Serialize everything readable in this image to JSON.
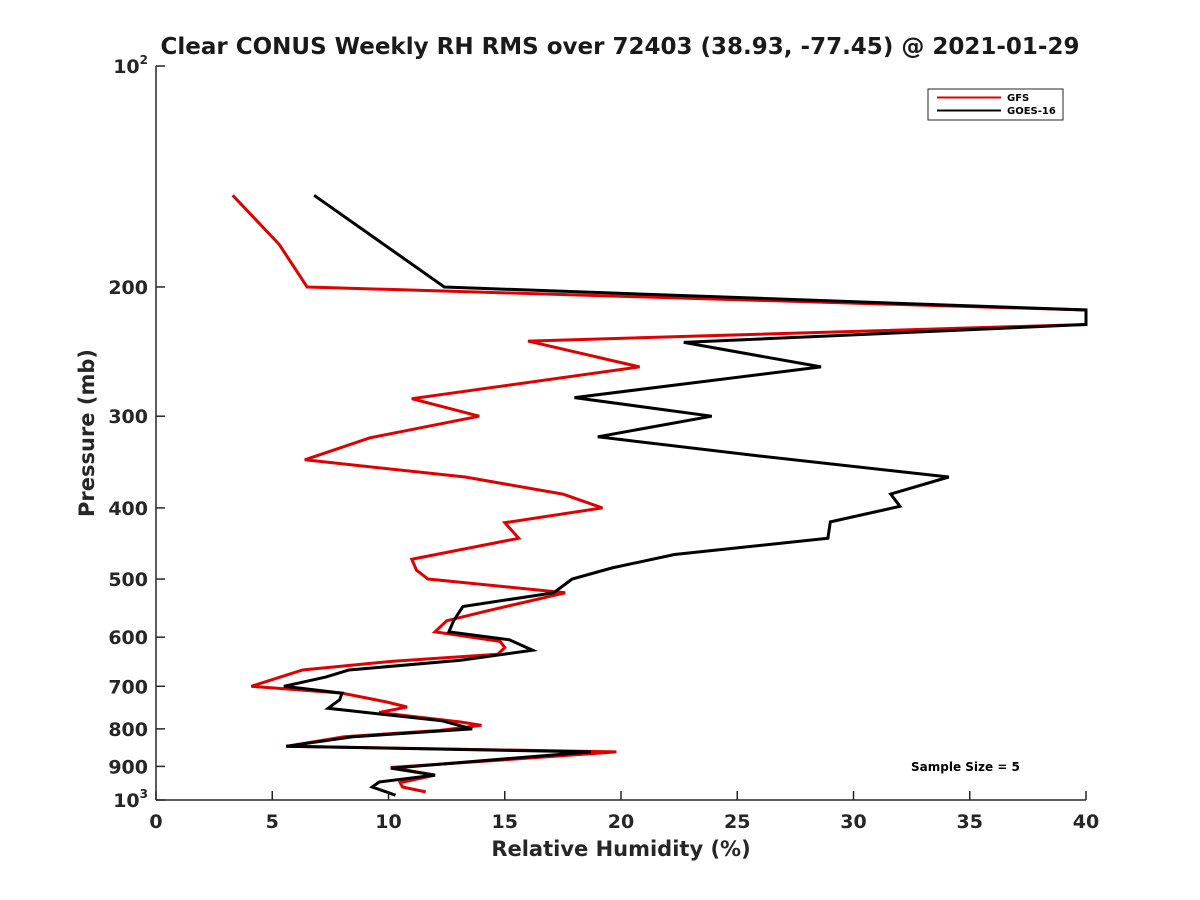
{
  "chart_data": {
    "type": "line",
    "title": "Clear CONUS Weekly RH RMS over 72403 (38.93, -77.45) @ 2021-01-29",
    "xlabel": "Relative Humidity (%)",
    "ylabel": "Pressure (mb)",
    "xlim": [
      0,
      40
    ],
    "ylim": [
      100,
      1000
    ],
    "y_scale": "log",
    "y_reversed": true,
    "grid": false,
    "legend_position": "top-right",
    "x_ticks": [
      "0",
      "5",
      "10",
      "15",
      "20",
      "25",
      "30",
      "35",
      "40"
    ],
    "y_ticks": [
      {
        "value": 100,
        "base": "10",
        "exp": "2"
      },
      {
        "value": 200,
        "base": "200",
        "exp": ""
      },
      {
        "value": 300,
        "base": "300",
        "exp": ""
      },
      {
        "value": 400,
        "base": "400",
        "exp": ""
      },
      {
        "value": 500,
        "base": "500",
        "exp": ""
      },
      {
        "value": 600,
        "base": "600",
        "exp": ""
      },
      {
        "value": 700,
        "base": "700",
        "exp": ""
      },
      {
        "value": 800,
        "base": "800",
        "exp": ""
      },
      {
        "value": 900,
        "base": "900",
        "exp": ""
      },
      {
        "value": 1000,
        "base": "10",
        "exp": "3"
      }
    ],
    "series": [
      {
        "name": "GFS",
        "color": "#e00000",
        "points": [
          [
            3.3,
            150
          ],
          [
            5.3,
            175
          ],
          [
            6.5,
            200
          ],
          [
            40.0,
            215
          ],
          [
            40.0,
            225
          ],
          [
            16.0,
            237
          ],
          [
            20.8,
            257
          ],
          [
            11.0,
            284
          ],
          [
            13.9,
            300
          ],
          [
            9.2,
            321
          ],
          [
            6.4,
            344
          ],
          [
            13.3,
            363
          ],
          [
            17.5,
            383
          ],
          [
            19.2,
            400
          ],
          [
            15.0,
            419
          ],
          [
            15.6,
            440
          ],
          [
            11.0,
            470
          ],
          [
            11.2,
            486
          ],
          [
            11.7,
            500
          ],
          [
            17.6,
            522
          ],
          [
            14.1,
            554
          ],
          [
            12.5,
            570
          ],
          [
            12.0,
            590
          ],
          [
            14.8,
            608
          ],
          [
            15.0,
            620
          ],
          [
            14.7,
            633
          ],
          [
            10.2,
            647
          ],
          [
            6.3,
            665
          ],
          [
            4.1,
            700
          ],
          [
            8.0,
            715
          ],
          [
            9.9,
            735
          ],
          [
            10.8,
            747
          ],
          [
            9.6,
            760
          ],
          [
            13.1,
            783
          ],
          [
            14.0,
            791
          ],
          [
            12.2,
            804
          ],
          [
            8.1,
            820
          ],
          [
            5.6,
            845
          ],
          [
            19.8,
            860
          ],
          [
            15.3,
            880
          ],
          [
            10.1,
            903
          ],
          [
            12.0,
            925
          ],
          [
            10.5,
            947
          ],
          [
            10.6,
            960
          ],
          [
            11.6,
            975
          ]
        ]
      },
      {
        "name": "GOES-16",
        "color": "#000000",
        "points": [
          [
            6.8,
            150
          ],
          [
            12.4,
            200
          ],
          [
            40.0,
            215
          ],
          [
            40.0,
            225
          ],
          [
            22.7,
            238
          ],
          [
            28.6,
            257
          ],
          [
            18.0,
            283
          ],
          [
            23.9,
            300
          ],
          [
            19.0,
            320
          ],
          [
            26.0,
            340
          ],
          [
            34.1,
            363
          ],
          [
            31.6,
            383
          ],
          [
            32.0,
            398
          ],
          [
            29.0,
            418
          ],
          [
            28.9,
            440
          ],
          [
            22.3,
            463
          ],
          [
            19.6,
            483
          ],
          [
            17.9,
            500
          ],
          [
            17.1,
            522
          ],
          [
            13.2,
            545
          ],
          [
            12.8,
            570
          ],
          [
            12.6,
            590
          ],
          [
            15.2,
            605
          ],
          [
            16.2,
            625
          ],
          [
            13.1,
            645
          ],
          [
            8.3,
            665
          ],
          [
            7.3,
            680
          ],
          [
            5.5,
            700
          ],
          [
            8.0,
            715
          ],
          [
            7.9,
            730
          ],
          [
            7.4,
            750
          ],
          [
            12.3,
            780
          ],
          [
            13.6,
            800
          ],
          [
            8.5,
            820
          ],
          [
            5.6,
            845
          ],
          [
            18.7,
            860
          ],
          [
            10.1,
            905
          ],
          [
            12.0,
            925
          ],
          [
            9.6,
            945
          ],
          [
            9.3,
            960
          ],
          [
            10.3,
            985
          ]
        ]
      }
    ],
    "annotations": [
      "Sample Size = 5"
    ]
  }
}
